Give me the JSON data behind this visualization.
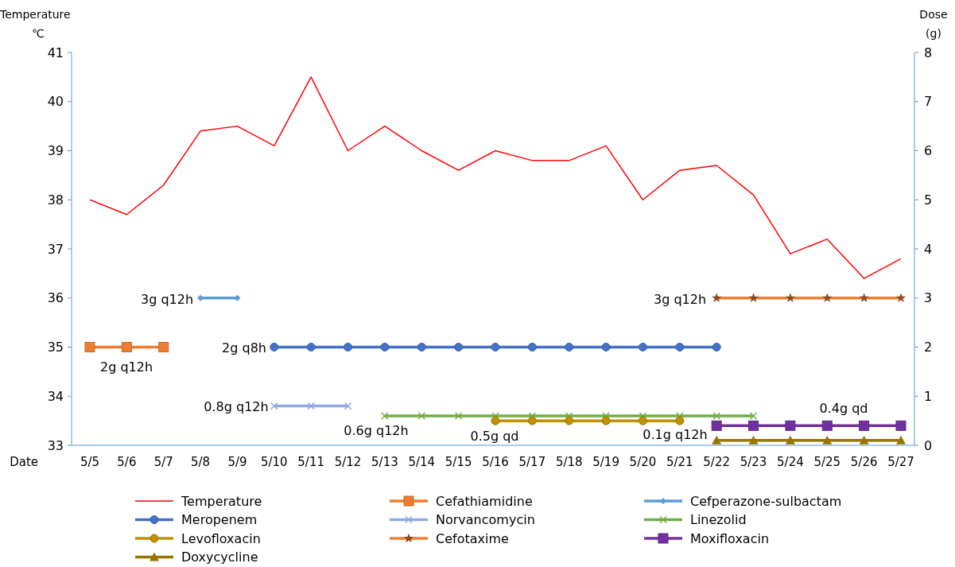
{
  "chart_data": {
    "type": "line",
    "ylabel": "Temperature\n℃",
    "y2label": "Dose\n(g)",
    "xlabel": "Date",
    "categories": [
      "5/5",
      "5/6",
      "5/7",
      "5/8",
      "5/9",
      "5/10",
      "5/11",
      "5/12",
      "5/13",
      "5/14",
      "5/15",
      "5/16",
      "5/17",
      "5/18",
      "5/19",
      "5/20",
      "5/21",
      "5/22",
      "5/23",
      "5/24",
      "5/25",
      "5/26",
      "5/27"
    ],
    "ylim": [
      33,
      41
    ],
    "yticks": [
      33,
      34,
      35,
      36,
      37,
      38,
      39,
      40,
      41
    ],
    "y2lim": [
      0,
      8
    ],
    "y2ticks": [
      0,
      1,
      2,
      3,
      4,
      5,
      6,
      7,
      8
    ],
    "legend": "bottom",
    "grid": false,
    "series": [
      {
        "name": "Temperature",
        "color": "#ff0000",
        "marker": "none",
        "values": [
          38.0,
          37.7,
          38.3,
          39.4,
          39.5,
          39.1,
          40.5,
          39.0,
          39.5,
          39.0,
          38.6,
          39.0,
          38.8,
          38.8,
          39.1,
          38.0,
          38.6,
          38.7,
          38.1,
          36.9,
          37.2,
          36.4,
          36.8
        ]
      },
      {
        "name": "Cefathiamidine",
        "color": "#ed7d31",
        "marker": "square",
        "axis": "y2",
        "values": [
          2,
          2,
          2,
          null,
          null,
          null,
          null,
          null,
          null,
          null,
          null,
          null,
          null,
          null,
          null,
          null,
          null,
          null,
          null,
          null,
          null,
          null,
          null
        ]
      },
      {
        "name": "Cefperazone-sulbactam",
        "color": "#5b9bd5",
        "marker": "diamond",
        "axis": "y2",
        "values": [
          null,
          null,
          null,
          3,
          3,
          null,
          null,
          null,
          null,
          null,
          null,
          null,
          null,
          null,
          null,
          null,
          null,
          null,
          null,
          null,
          null,
          null,
          null
        ]
      },
      {
        "name": "Meropenem",
        "color": "#4472c4",
        "marker": "circle",
        "axis": "y2",
        "values": [
          null,
          null,
          null,
          null,
          null,
          2,
          2,
          2,
          2,
          2,
          2,
          2,
          2,
          2,
          2,
          2,
          2,
          2,
          null,
          null,
          null,
          null,
          null
        ]
      },
      {
        "name": "Norvancomycin",
        "color": "#8faadc",
        "marker": "cross",
        "axis": "y2",
        "values": [
          null,
          null,
          null,
          null,
          null,
          0.8,
          0.8,
          0.8,
          null,
          null,
          null,
          null,
          null,
          null,
          null,
          null,
          null,
          null,
          null,
          null,
          null,
          null,
          null
        ]
      },
      {
        "name": "Linezolid",
        "color": "#70ad47",
        "marker": "cross",
        "axis": "y2",
        "values": [
          null,
          null,
          null,
          null,
          null,
          null,
          null,
          null,
          0.6,
          0.6,
          0.6,
          0.6,
          0.6,
          0.6,
          0.6,
          0.6,
          0.6,
          0.6,
          0.6,
          null,
          null,
          null,
          null
        ]
      },
      {
        "name": "Levofloxacin",
        "color": "#bf9000",
        "marker": "circle",
        "axis": "y2",
        "values": [
          null,
          null,
          null,
          null,
          null,
          null,
          null,
          null,
          null,
          null,
          null,
          0.5,
          0.5,
          0.5,
          0.5,
          0.5,
          0.5,
          null,
          null,
          null,
          null,
          null,
          null
        ]
      },
      {
        "name": "Cefotaxime",
        "color": "#ed7d31",
        "marker": "star",
        "axis": "y2",
        "values": [
          null,
          null,
          null,
          null,
          null,
          null,
          null,
          null,
          null,
          null,
          null,
          null,
          null,
          null,
          null,
          null,
          null,
          3,
          3,
          3,
          3,
          3,
          3
        ]
      },
      {
        "name": "Moxifloxacin",
        "color": "#7030a0",
        "marker": "square",
        "axis": "y2",
        "values": [
          null,
          null,
          null,
          null,
          null,
          null,
          null,
          null,
          null,
          null,
          null,
          null,
          null,
          null,
          null,
          null,
          null,
          0.4,
          0.4,
          0.4,
          0.4,
          0.4,
          0.4
        ]
      },
      {
        "name": "Doxycycline",
        "color": "#997300",
        "marker": "triangle",
        "axis": "y2",
        "values": [
          null,
          null,
          null,
          null,
          null,
          null,
          null,
          null,
          null,
          null,
          null,
          null,
          null,
          null,
          null,
          null,
          null,
          0.1,
          0.1,
          0.1,
          0.1,
          0.1,
          0.1
        ]
      }
    ],
    "annotations": [
      "3g q12h",
      "2g q12h",
      "2g q8h",
      "0.8g q12h",
      "0.6g q12h",
      "0.5g qd",
      "0.1g q12h",
      "3g q12h",
      "0.4g qd"
    ]
  }
}
